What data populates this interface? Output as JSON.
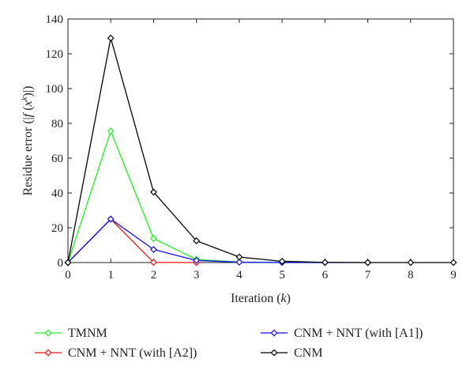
{
  "chart_data": {
    "type": "line",
    "xlabel": "Iteration (k)",
    "ylabel": "Residue error (|f(x^k)|)",
    "xlim": [
      0,
      9
    ],
    "ylim": [
      0,
      140
    ],
    "x_ticks": [
      "0",
      "1",
      "2",
      "3",
      "4",
      "5",
      "6",
      "7",
      "8",
      "9"
    ],
    "y_ticks": [
      "0",
      "20",
      "40",
      "60",
      "80",
      "100",
      "120",
      "140"
    ],
    "grid": false,
    "legend_position": "below",
    "series": [
      {
        "name": "TMNM",
        "color": "#22ee22",
        "marker": "diamond",
        "x": [
          0,
          1,
          2,
          3,
          4,
          5,
          6
        ],
        "y": [
          0,
          75.5,
          13.8,
          1.8,
          0.3,
          0.05,
          0
        ]
      },
      {
        "name": "CNM + NNT (with [A2])",
        "color": "#ee1111",
        "marker": "diamond",
        "x": [
          0,
          1,
          2,
          3
        ],
        "y": [
          0,
          25,
          0.1,
          0
        ]
      },
      {
        "name": "CNM + NNT (with [A1])",
        "color": "#1111ee",
        "marker": "diamond",
        "x": [
          0,
          1,
          2,
          3,
          4,
          5,
          6,
          7
        ],
        "y": [
          0,
          25,
          7.5,
          1.2,
          0.2,
          0.03,
          0,
          0
        ]
      },
      {
        "name": "CNM",
        "color": "#000000",
        "marker": "diamond",
        "x": [
          0,
          1,
          2,
          3,
          4,
          5,
          6,
          7,
          8,
          9
        ],
        "y": [
          0,
          129,
          40.5,
          12.5,
          3.2,
          0.7,
          0.1,
          0,
          0,
          0
        ]
      }
    ]
  }
}
